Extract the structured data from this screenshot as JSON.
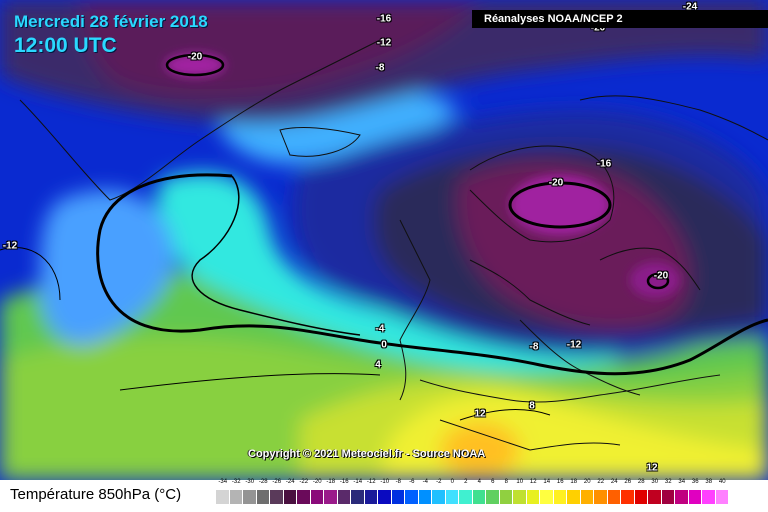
{
  "header": {
    "date": "Mercredi 28 février 2018",
    "time": "12:00 UTC",
    "source": "Réanalyses NOAA/NCEP 2"
  },
  "footer": {
    "copyright": "Copyright © 2021 Meteociel.fr - Source NOAA",
    "legend_title": "Température 850hPa (°C)"
  },
  "map": {
    "field": "Température 850hPa",
    "unit": "°C",
    "isotherm_labels": [
      {
        "id": "l1",
        "text": "-16"
      },
      {
        "id": "l2",
        "text": "-12"
      },
      {
        "id": "l3",
        "text": "-8"
      },
      {
        "id": "l4",
        "text": "-20"
      },
      {
        "id": "l5",
        "text": "-12"
      },
      {
        "id": "l6",
        "text": "-16"
      },
      {
        "id": "l7",
        "text": "-20"
      },
      {
        "id": "l8",
        "text": "-20"
      },
      {
        "id": "l9",
        "text": "-4"
      },
      {
        "id": "l10",
        "text": "0"
      },
      {
        "id": "l11",
        "text": "4"
      },
      {
        "id": "l12",
        "text": "-8"
      },
      {
        "id": "l13",
        "text": "-12"
      },
      {
        "id": "l14",
        "text": "12"
      },
      {
        "id": "l15",
        "text": "8"
      },
      {
        "id": "l16",
        "text": "12"
      },
      {
        "id": "l17",
        "text": "-24"
      },
      {
        "id": "l18",
        "text": "-20"
      }
    ]
  },
  "legend": {
    "values": [
      "-34",
      "-32",
      "-30",
      "-28",
      "-26",
      "-24",
      "-22",
      "-20",
      "-18",
      "-16",
      "-14",
      "-12",
      "-10",
      "-8",
      "-6",
      "-4",
      "-2",
      "0",
      "2",
      "4",
      "6",
      "8",
      "10",
      "12",
      "14",
      "16",
      "18",
      "20",
      "22",
      "24",
      "26",
      "28",
      "30",
      "32",
      "34",
      "36",
      "38",
      "40"
    ],
    "colors": [
      "#d4d4d4",
      "#b4b4b4",
      "#949494",
      "#6e6e6e",
      "#5a3a5a",
      "#4a1040",
      "#6a0a5a",
      "#8a0a7a",
      "#9a1a8a",
      "#5a2a6a",
      "#2a2a7a",
      "#1a1a9a",
      "#0a0ac0",
      "#0030e0",
      "#0060ff",
      "#0090ff",
      "#20c0ff",
      "#40e0ff",
      "#40f0d0",
      "#40e090",
      "#60d060",
      "#90d040",
      "#c0e030",
      "#e8f020",
      "#ffff40",
      "#fff020",
      "#ffd000",
      "#ffb000",
      "#ff9000",
      "#ff6000",
      "#ff3000",
      "#e00000",
      "#c00020",
      "#a00040",
      "#c00080",
      "#e000c0",
      "#ff40ff",
      "#ff80ff"
    ]
  }
}
